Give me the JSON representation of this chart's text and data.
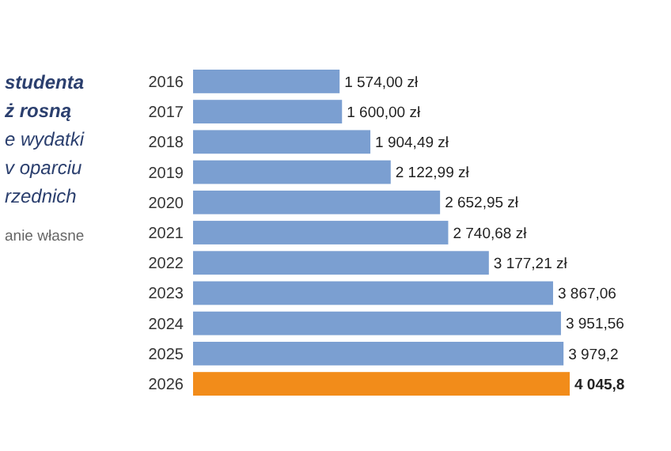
{
  "chart_data": {
    "type": "bar",
    "orientation": "horizontal",
    "title": "studenta\nż rosną",
    "subtitle": "e wydatki\nv oparciu\nrzednich",
    "annotations": [
      "anie własne"
    ],
    "categories": [
      "2016",
      "2017",
      "2018",
      "2019",
      "2020",
      "2021",
      "2022",
      "2023",
      "2024",
      "2025",
      "2026"
    ],
    "values": [
      1574.0,
      1600.0,
      1904.49,
      2122.99,
      2652.95,
      2740.68,
      3177.21,
      3867.06,
      3951.56,
      3979.2,
      4045.8
    ],
    "colors": [
      "#7b9fd1",
      "#7b9fd1",
      "#7b9fd1",
      "#7b9fd1",
      "#7b9fd1",
      "#7b9fd1",
      "#7b9fd1",
      "#7b9fd1",
      "#7b9fd1",
      "#7b9fd1",
      "#f28c1a"
    ],
    "value_labels": [
      "1 574,00 zł",
      "1 600,00 zł",
      "1 904,49 zł",
      "2 122,99 zł",
      "2 652,95 zł",
      "2 740,68 zł",
      "3 177,21 zł",
      "3 867,06",
      "3 951,56",
      "3 979,2",
      "4 045,8"
    ]
  }
}
